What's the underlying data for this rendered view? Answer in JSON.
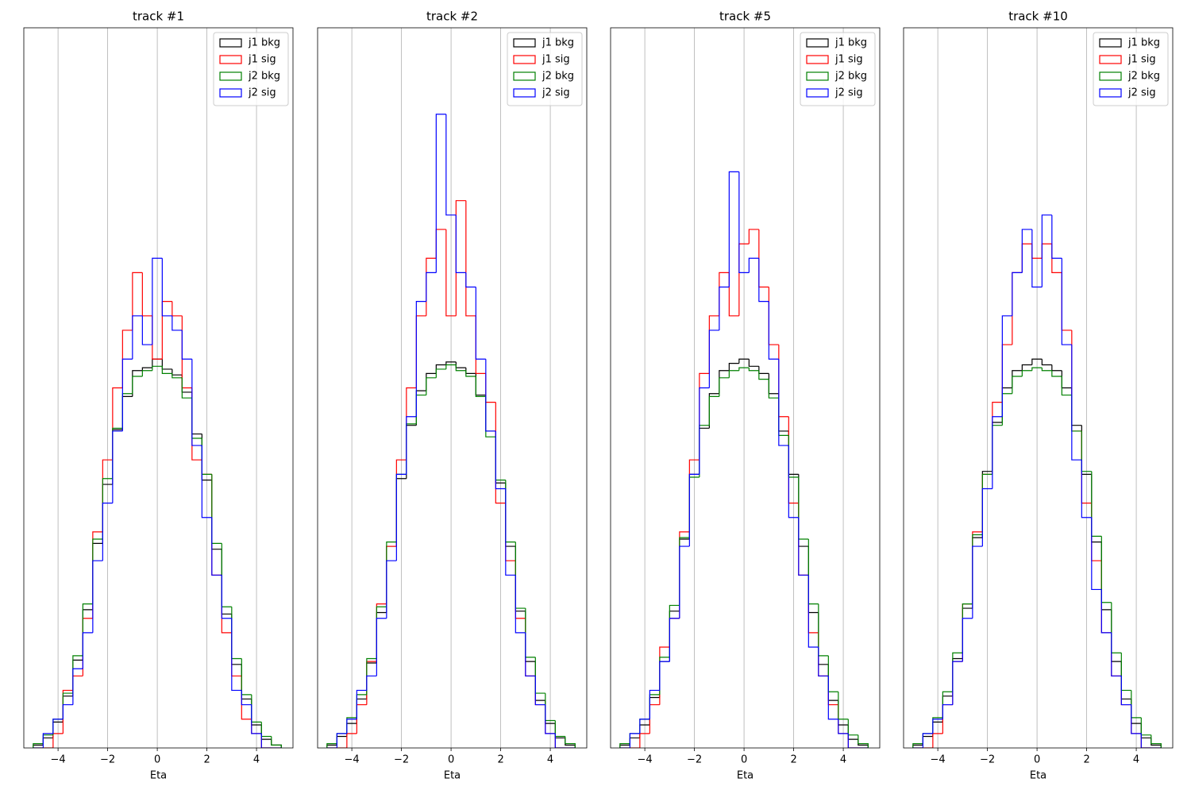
{
  "chart_data": [
    {
      "type": "histogram",
      "title": "track #1",
      "xlabel": "Eta",
      "bins": [
        -5,
        -4.6,
        -4.2,
        -3.8,
        -3.4,
        -3,
        -2.6,
        -2.2,
        -1.8,
        -1.4,
        -1,
        -0.6,
        -0.2,
        0.2,
        0.6,
        1,
        1.4,
        1.8,
        2.2,
        2.6,
        3,
        3.4,
        3.8,
        4.2,
        4.6,
        5
      ],
      "series": [
        {
          "name": "j1 bkg",
          "color": "#000000",
          "values": [
            0.002,
            0.007,
            0.018,
            0.036,
            0.061,
            0.096,
            0.142,
            0.183,
            0.221,
            0.244,
            0.262,
            0.264,
            0.27,
            0.263,
            0.259,
            0.247,
            0.218,
            0.186,
            0.138,
            0.093,
            0.058,
            0.034,
            0.016,
            0.006,
            0.002
          ]
        },
        {
          "name": "j1 sig",
          "color": "#ff0000",
          "values": [
            0,
            0,
            0.01,
            0.04,
            0.05,
            0.09,
            0.15,
            0.2,
            0.25,
            0.29,
            0.33,
            0.3,
            0.27,
            0.31,
            0.3,
            0.25,
            0.2,
            0.19,
            0.12,
            0.08,
            0.05,
            0.02,
            0.01,
            0,
            0
          ]
        },
        {
          "name": "j2 bkg",
          "color": "#008000",
          "values": [
            0.003,
            0.009,
            0.02,
            0.038,
            0.064,
            0.1,
            0.145,
            0.187,
            0.222,
            0.246,
            0.258,
            0.262,
            0.265,
            0.26,
            0.257,
            0.243,
            0.215,
            0.19,
            0.142,
            0.098,
            0.062,
            0.037,
            0.018,
            0.008,
            0.002
          ]
        },
        {
          "name": "j2 sig",
          "color": "#0000ff",
          "values": [
            0,
            0.01,
            0.02,
            0.03,
            0.055,
            0.08,
            0.13,
            0.17,
            0.22,
            0.27,
            0.3,
            0.28,
            0.34,
            0.3,
            0.29,
            0.27,
            0.21,
            0.16,
            0.12,
            0.09,
            0.04,
            0.03,
            0.01,
            0,
            0
          ]
        }
      ],
      "xlim": [
        -5.38,
        5.47
      ],
      "ylim": [
        0,
        0.5
      ],
      "xticks": [
        {
          "value": -4,
          "label": "−4"
        },
        {
          "value": -2,
          "label": "−2"
        },
        0,
        2,
        4
      ],
      "grid": "x",
      "legend": "upper right"
    },
    {
      "type": "histogram",
      "title": "track #2",
      "xlabel": "Eta",
      "bins": [
        -5,
        -4.6,
        -4.2,
        -3.8,
        -3.4,
        -3,
        -2.6,
        -2.2,
        -1.8,
        -1.4,
        -1,
        -0.6,
        -0.2,
        0.2,
        0.6,
        1,
        1.4,
        1.8,
        2.2,
        2.6,
        3,
        3.4,
        3.8,
        4.2,
        4.6,
        5
      ],
      "series": [
        {
          "name": "j1 bkg",
          "color": "#000000",
          "values": [
            0.002,
            0.008,
            0.017,
            0.034,
            0.059,
            0.094,
            0.14,
            0.187,
            0.224,
            0.248,
            0.26,
            0.266,
            0.268,
            0.264,
            0.26,
            0.245,
            0.22,
            0.184,
            0.14,
            0.095,
            0.06,
            0.033,
            0.017,
            0.007,
            0.002
          ]
        },
        {
          "name": "j1 sig",
          "color": "#ff0000",
          "values": [
            0,
            0,
            0.01,
            0.03,
            0.06,
            0.1,
            0.14,
            0.2,
            0.25,
            0.3,
            0.34,
            0.36,
            0.3,
            0.38,
            0.3,
            0.26,
            0.24,
            0.17,
            0.13,
            0.09,
            0.05,
            0.03,
            0.01,
            0,
            0
          ]
        },
        {
          "name": "j2 bkg",
          "color": "#008000",
          "values": [
            0.003,
            0.01,
            0.021,
            0.037,
            0.062,
            0.098,
            0.143,
            0.19,
            0.225,
            0.245,
            0.257,
            0.263,
            0.266,
            0.262,
            0.258,
            0.244,
            0.216,
            0.186,
            0.143,
            0.097,
            0.063,
            0.038,
            0.019,
            0.008,
            0.003
          ]
        },
        {
          "name": "j2 sig",
          "color": "#0000ff",
          "values": [
            0,
            0.01,
            0.02,
            0.04,
            0.05,
            0.09,
            0.13,
            0.19,
            0.23,
            0.31,
            0.33,
            0.44,
            0.37,
            0.33,
            0.32,
            0.27,
            0.22,
            0.18,
            0.12,
            0.08,
            0.05,
            0.03,
            0.01,
            0,
            0
          ]
        }
      ],
      "xlim": [
        -5.38,
        5.47
      ],
      "ylim": [
        0,
        0.5
      ],
      "xticks": [
        {
          "value": -4,
          "label": "−4"
        },
        {
          "value": -2,
          "label": "−2"
        },
        0,
        2,
        4
      ],
      "grid": "x",
      "legend": "upper right"
    },
    {
      "type": "histogram",
      "title": "track #5",
      "xlabel": "Eta",
      "bins": [
        -5,
        -4.6,
        -4.2,
        -3.8,
        -3.4,
        -3,
        -2.6,
        -2.2,
        -1.8,
        -1.4,
        -1,
        -0.6,
        -0.2,
        0.2,
        0.6,
        1,
        1.4,
        1.8,
        2.2,
        2.6,
        3,
        3.4,
        3.8,
        4.2,
        4.6,
        5
      ],
      "series": [
        {
          "name": "j1 bkg",
          "color": "#000000",
          "values": [
            0.002,
            0.007,
            0.016,
            0.035,
            0.06,
            0.095,
            0.145,
            0.19,
            0.222,
            0.246,
            0.262,
            0.267,
            0.27,
            0.265,
            0.26,
            0.246,
            0.22,
            0.19,
            0.14,
            0.094,
            0.058,
            0.033,
            0.016,
            0.006,
            0.002
          ]
        },
        {
          "name": "j1 sig",
          "color": "#ff0000",
          "values": [
            0,
            0,
            0.01,
            0.03,
            0.07,
            0.09,
            0.15,
            0.2,
            0.26,
            0.3,
            0.33,
            0.3,
            0.35,
            0.36,
            0.32,
            0.28,
            0.23,
            0.17,
            0.12,
            0.08,
            0.05,
            0.03,
            0.01,
            0,
            0
          ]
        },
        {
          "name": "j2 bkg",
          "color": "#008000",
          "values": [
            0.003,
            0.01,
            0.02,
            0.037,
            0.063,
            0.099,
            0.146,
            0.188,
            0.224,
            0.244,
            0.257,
            0.262,
            0.264,
            0.262,
            0.256,
            0.243,
            0.217,
            0.188,
            0.145,
            0.1,
            0.064,
            0.039,
            0.02,
            0.009,
            0.003
          ]
        },
        {
          "name": "j2 sig",
          "color": "#0000ff",
          "values": [
            0,
            0.01,
            0.02,
            0.04,
            0.06,
            0.09,
            0.14,
            0.19,
            0.25,
            0.29,
            0.32,
            0.4,
            0.33,
            0.34,
            0.31,
            0.27,
            0.21,
            0.16,
            0.12,
            0.07,
            0.05,
            0.02,
            0.01,
            0,
            0
          ]
        }
      ],
      "xlim": [
        -5.38,
        5.47
      ],
      "ylim": [
        0,
        0.5
      ],
      "xticks": [
        {
          "value": -4,
          "label": "−4"
        },
        {
          "value": -2,
          "label": "−2"
        },
        0,
        2,
        4
      ],
      "grid": "x",
      "legend": "upper right"
    },
    {
      "type": "histogram",
      "title": "track #10",
      "xlabel": "Eta",
      "bins": [
        -5,
        -4.6,
        -4.2,
        -3.8,
        -3.4,
        -3,
        -2.6,
        -2.2,
        -1.8,
        -1.4,
        -1,
        -0.6,
        -0.2,
        0.2,
        0.6,
        1,
        1.4,
        1.8,
        2.2,
        2.6,
        3,
        3.4,
        3.8,
        4.2,
        4.6,
        5
      ],
      "series": [
        {
          "name": "j1 bkg",
          "color": "#000000",
          "values": [
            0.002,
            0.008,
            0.018,
            0.036,
            0.062,
            0.097,
            0.146,
            0.192,
            0.226,
            0.25,
            0.262,
            0.266,
            0.27,
            0.266,
            0.262,
            0.25,
            0.224,
            0.19,
            0.143,
            0.096,
            0.06,
            0.034,
            0.017,
            0.007,
            0.002
          ]
        },
        {
          "name": "j1 sig",
          "color": "#ff0000",
          "values": [
            0,
            0,
            0.01,
            0.03,
            0.06,
            0.1,
            0.15,
            0.19,
            0.24,
            0.28,
            0.33,
            0.35,
            0.34,
            0.35,
            0.33,
            0.29,
            0.22,
            0.17,
            0.13,
            0.08,
            0.05,
            0.03,
            0.01,
            0,
            0
          ]
        },
        {
          "name": "j2 bkg",
          "color": "#008000",
          "values": [
            0.003,
            0.01,
            0.021,
            0.039,
            0.066,
            0.1,
            0.148,
            0.19,
            0.224,
            0.246,
            0.258,
            0.262,
            0.264,
            0.262,
            0.258,
            0.245,
            0.22,
            0.192,
            0.147,
            0.101,
            0.066,
            0.04,
            0.021,
            0.009,
            0.003
          ]
        },
        {
          "name": "j2 sig",
          "color": "#0000ff",
          "values": [
            0,
            0.01,
            0.02,
            0.03,
            0.06,
            0.09,
            0.14,
            0.18,
            0.23,
            0.3,
            0.33,
            0.36,
            0.32,
            0.37,
            0.34,
            0.28,
            0.2,
            0.16,
            0.11,
            0.08,
            0.05,
            0.03,
            0.01,
            0,
            0
          ]
        }
      ],
      "xlim": [
        -5.38,
        5.47
      ],
      "ylim": [
        0,
        0.5
      ],
      "xticks": [
        {
          "value": -4,
          "label": "−4"
        },
        {
          "value": -2,
          "label": "−2"
        },
        0,
        2,
        4
      ],
      "grid": "x",
      "legend": "upper right"
    }
  ]
}
